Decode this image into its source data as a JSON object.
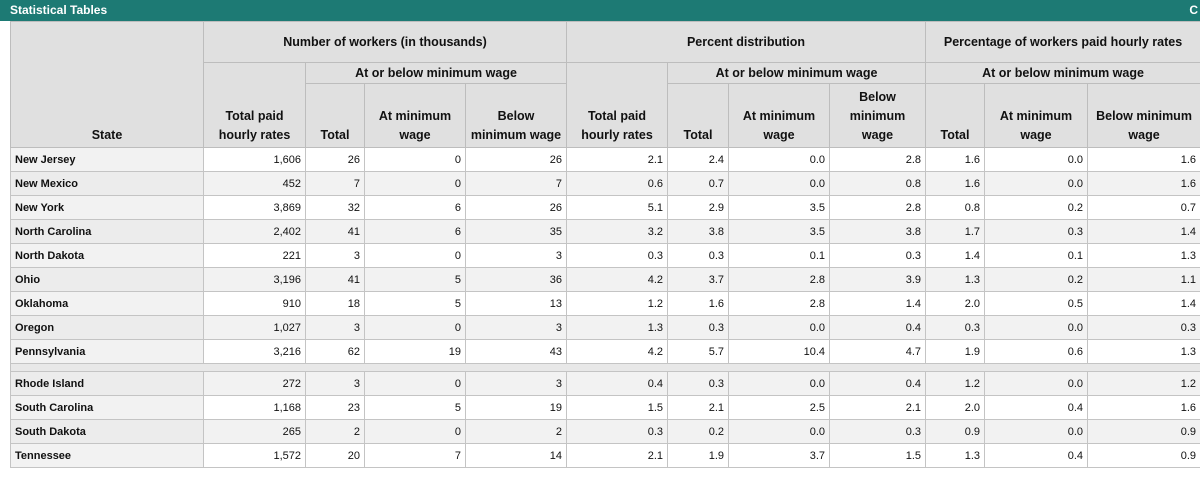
{
  "titlebar": {
    "title": "Statistical Tables",
    "corner_label": "C"
  },
  "headers": {
    "state": "State",
    "groups": [
      "Number of workers (in thousands)",
      "Percent distribution",
      "Percentage of workers paid hourly rates"
    ],
    "sub_group": "At or below minimum wage",
    "total_paid": "Total paid hourly rates",
    "total": "Total",
    "at_min": "At minimum wage",
    "below_min": "Below minimum wage"
  },
  "rows": [
    {
      "state": "New Jersey",
      "n_total_paid": "1,606",
      "n_total": "26",
      "n_at": "0",
      "n_below": "26",
      "p_total_paid": "2.1",
      "p_total": "2.4",
      "p_at": "0.0",
      "p_below": "2.8",
      "pct_total": "1.6",
      "pct_at": "0.0",
      "pct_below": "1.6"
    },
    {
      "state": "New Mexico",
      "n_total_paid": "452",
      "n_total": "7",
      "n_at": "0",
      "n_below": "7",
      "p_total_paid": "0.6",
      "p_total": "0.7",
      "p_at": "0.0",
      "p_below": "0.8",
      "pct_total": "1.6",
      "pct_at": "0.0",
      "pct_below": "1.6"
    },
    {
      "state": "New York",
      "n_total_paid": "3,869",
      "n_total": "32",
      "n_at": "6",
      "n_below": "26",
      "p_total_paid": "5.1",
      "p_total": "2.9",
      "p_at": "3.5",
      "p_below": "2.8",
      "pct_total": "0.8",
      "pct_at": "0.2",
      "pct_below": "0.7"
    },
    {
      "state": "North Carolina",
      "n_total_paid": "2,402",
      "n_total": "41",
      "n_at": "6",
      "n_below": "35",
      "p_total_paid": "3.2",
      "p_total": "3.8",
      "p_at": "3.5",
      "p_below": "3.8",
      "pct_total": "1.7",
      "pct_at": "0.3",
      "pct_below": "1.4"
    },
    {
      "state": "North Dakota",
      "n_total_paid": "221",
      "n_total": "3",
      "n_at": "0",
      "n_below": "3",
      "p_total_paid": "0.3",
      "p_total": "0.3",
      "p_at": "0.1",
      "p_below": "0.3",
      "pct_total": "1.4",
      "pct_at": "0.1",
      "pct_below": "1.3"
    },
    {
      "state": "Ohio",
      "n_total_paid": "3,196",
      "n_total": "41",
      "n_at": "5",
      "n_below": "36",
      "p_total_paid": "4.2",
      "p_total": "3.7",
      "p_at": "2.8",
      "p_below": "3.9",
      "pct_total": "1.3",
      "pct_at": "0.2",
      "pct_below": "1.1"
    },
    {
      "state": "Oklahoma",
      "n_total_paid": "910",
      "n_total": "18",
      "n_at": "5",
      "n_below": "13",
      "p_total_paid": "1.2",
      "p_total": "1.6",
      "p_at": "2.8",
      "p_below": "1.4",
      "pct_total": "2.0",
      "pct_at": "0.5",
      "pct_below": "1.4"
    },
    {
      "state": "Oregon",
      "n_total_paid": "1,027",
      "n_total": "3",
      "n_at": "0",
      "n_below": "3",
      "p_total_paid": "1.3",
      "p_total": "0.3",
      "p_at": "0.0",
      "p_below": "0.4",
      "pct_total": "0.3",
      "pct_at": "0.0",
      "pct_below": "0.3"
    },
    {
      "state": "Pennsylvania",
      "n_total_paid": "3,216",
      "n_total": "62",
      "n_at": "19",
      "n_below": "43",
      "p_total_paid": "4.2",
      "p_total": "5.7",
      "p_at": "10.4",
      "p_below": "4.7",
      "pct_total": "1.9",
      "pct_at": "0.6",
      "pct_below": "1.3"
    },
    {
      "state": "Rhode Island",
      "n_total_paid": "272",
      "n_total": "3",
      "n_at": "0",
      "n_below": "3",
      "p_total_paid": "0.4",
      "p_total": "0.3",
      "p_at": "0.0",
      "p_below": "0.4",
      "pct_total": "1.2",
      "pct_at": "0.0",
      "pct_below": "1.2"
    },
    {
      "state": "South Carolina",
      "n_total_paid": "1,168",
      "n_total": "23",
      "n_at": "5",
      "n_below": "19",
      "p_total_paid": "1.5",
      "p_total": "2.1",
      "p_at": "2.5",
      "p_below": "2.1",
      "pct_total": "2.0",
      "pct_at": "0.4",
      "pct_below": "1.6"
    },
    {
      "state": "South Dakota",
      "n_total_paid": "265",
      "n_total": "2",
      "n_at": "0",
      "n_below": "2",
      "p_total_paid": "0.3",
      "p_total": "0.2",
      "p_at": "0.0",
      "p_below": "0.3",
      "pct_total": "0.9",
      "pct_at": "0.0",
      "pct_below": "0.9"
    },
    {
      "state": "Tennessee",
      "n_total_paid": "1,572",
      "n_total": "20",
      "n_at": "7",
      "n_below": "14",
      "p_total_paid": "2.1",
      "p_total": "1.9",
      "p_at": "3.7",
      "p_below": "1.5",
      "pct_total": "1.3",
      "pct_at": "0.4",
      "pct_below": "0.9"
    }
  ]
}
